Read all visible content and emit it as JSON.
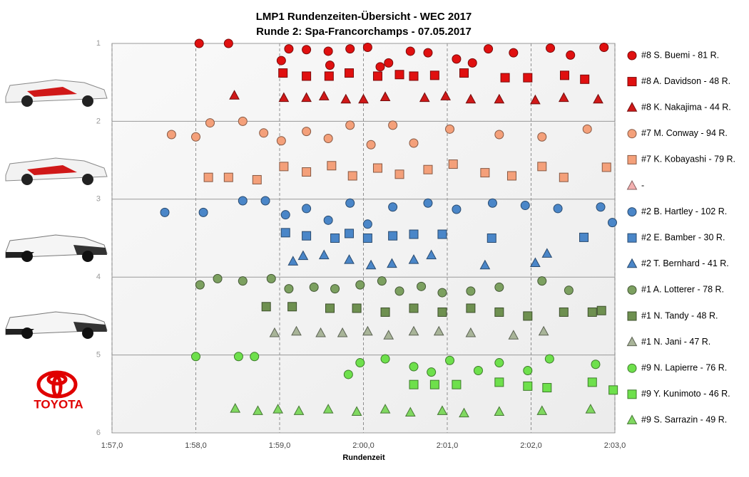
{
  "chart_data": {
    "type": "scatter",
    "title": "LMP1  Rundenzeiten-Übersicht  - WEC 2017",
    "subtitle": "Runde  2: Spa-Francorchamps  - 07.05.2017",
    "x_label": "Rundenzeit",
    "brand": "TOYOTA",
    "xlim": [
      117,
      123
    ],
    "xticks": [
      {
        "value": 117,
        "label": "1:57,0"
      },
      {
        "value": 118,
        "label": "1:58,0"
      },
      {
        "value": 119,
        "label": "1:59,0"
      },
      {
        "value": 120,
        "label": "2:00,0"
      },
      {
        "value": 121,
        "label": "2:01,0"
      },
      {
        "value": 122,
        "label": "2:02,0"
      },
      {
        "value": 123,
        "label": "2:03,0"
      }
    ],
    "ylim": [
      1,
      6
    ],
    "y_reversed": true,
    "yticks": [
      1,
      2,
      3,
      4,
      5,
      6
    ],
    "grid": true,
    "legend": "right",
    "series": [
      {
        "name": "#8 S. Buemi - 81 R.",
        "color": "#e01010",
        "marker": "circle",
        "x": [
          118.04,
          118.39,
          119.11,
          119.02,
          119.32,
          119.58,
          119.84,
          120.05,
          120.3,
          120.56,
          120.77,
          121.11,
          121.49,
          121.79,
          122.23,
          122.47,
          122.87,
          119.6,
          120.2,
          121.3
        ],
        "y": [
          1.0,
          1.0,
          1.07,
          1.22,
          1.08,
          1.1,
          1.07,
          1.05,
          1.25,
          1.1,
          1.12,
          1.2,
          1.07,
          1.12,
          1.06,
          1.15,
          1.05,
          1.28,
          1.3,
          1.25
        ]
      },
      {
        "name": "#8 A. Davidson - 48 R.",
        "color": "#e01010",
        "marker": "square",
        "x": [
          119.04,
          119.32,
          119.59,
          119.83,
          120.17,
          120.43,
          120.6,
          120.85,
          121.2,
          121.69,
          121.96,
          122.4,
          122.64
        ],
        "y": [
          1.38,
          1.42,
          1.42,
          1.38,
          1.42,
          1.4,
          1.42,
          1.41,
          1.38,
          1.44,
          1.44,
          1.41,
          1.46
        ]
      },
      {
        "name": "#8 K. Nakajima - 44 R.",
        "color": "#d01818",
        "marker": "triangle",
        "x": [
          118.46,
          119.05,
          119.32,
          119.53,
          119.79,
          120.0,
          120.26,
          120.73,
          120.98,
          121.28,
          121.62,
          122.05,
          122.39,
          122.8
        ],
        "y": [
          1.67,
          1.7,
          1.7,
          1.68,
          1.72,
          1.72,
          1.69,
          1.7,
          1.68,
          1.72,
          1.72,
          1.73,
          1.7,
          1.72
        ]
      },
      {
        "name": "#7 M. Conway - 94 R.",
        "color": "#f4a07a",
        "marker": "circle",
        "x": [
          117.71,
          118.0,
          118.17,
          118.56,
          118.81,
          119.02,
          119.32,
          119.58,
          119.84,
          120.09,
          120.35,
          120.6,
          121.03,
          121.62,
          122.13,
          122.67
        ],
        "y": [
          2.17,
          2.2,
          2.02,
          2.0,
          2.15,
          2.25,
          2.13,
          2.22,
          2.05,
          2.3,
          2.05,
          2.28,
          2.1,
          2.17,
          2.2,
          2.1
        ]
      },
      {
        "name": "#7 K. Kobayashi - 79 R.",
        "color": "#f4a07a",
        "marker": "square",
        "x": [
          118.15,
          118.39,
          118.73,
          119.05,
          119.32,
          119.62,
          119.87,
          120.17,
          120.43,
          120.77,
          121.07,
          121.45,
          121.77,
          122.13,
          122.39,
          122.9
        ],
        "y": [
          2.72,
          2.72,
          2.75,
          2.58,
          2.65,
          2.57,
          2.7,
          2.6,
          2.68,
          2.62,
          2.55,
          2.66,
          2.7,
          2.58,
          2.72,
          2.59
        ]
      },
      {
        "name": "-",
        "color": "#f4b0b0",
        "marker": "triangle",
        "x": [],
        "y": []
      },
      {
        "name": "#2 B. Hartley - 102 R.",
        "color": "#4a86c8",
        "marker": "circle",
        "x": [
          117.63,
          118.09,
          118.56,
          118.83,
          119.07,
          119.32,
          119.58,
          119.84,
          120.05,
          120.35,
          120.77,
          121.11,
          121.54,
          121.93,
          122.32,
          122.83,
          122.97
        ],
        "y": [
          3.17,
          3.17,
          3.02,
          3.02,
          3.2,
          3.12,
          3.27,
          3.05,
          3.32,
          3.1,
          3.05,
          3.13,
          3.05,
          3.08,
          3.12,
          3.1,
          3.3
        ]
      },
      {
        "name": "#2 E. Bamber - 30 R.",
        "color": "#4a86c8",
        "marker": "square",
        "x": [
          119.07,
          119.32,
          119.66,
          119.83,
          120.05,
          120.35,
          120.6,
          120.94,
          121.53,
          122.63
        ],
        "y": [
          3.43,
          3.47,
          3.5,
          3.44,
          3.5,
          3.47,
          3.45,
          3.45,
          3.5,
          3.49
        ]
      },
      {
        "name": "#2 T. Bernhard - 41 R.",
        "color": "#4a86c8",
        "marker": "triangle",
        "x": [
          119.16,
          119.28,
          119.53,
          119.83,
          120.09,
          120.34,
          120.6,
          120.81,
          121.45,
          122.05,
          122.19
        ],
        "y": [
          3.8,
          3.73,
          3.72,
          3.78,
          3.85,
          3.83,
          3.78,
          3.72,
          3.85,
          3.82,
          3.7
        ]
      },
      {
        "name": "#1 A. Lotterer - 78 R.",
        "color": "#7ca060",
        "marker": "circle",
        "x": [
          118.05,
          118.26,
          118.56,
          118.9,
          119.11,
          119.41,
          119.66,
          119.96,
          120.22,
          120.43,
          120.69,
          120.94,
          121.28,
          121.62,
          122.13,
          122.45
        ],
        "y": [
          4.1,
          4.02,
          4.05,
          4.02,
          4.15,
          4.13,
          4.15,
          4.1,
          4.05,
          4.18,
          4.12,
          4.2,
          4.18,
          4.13,
          4.05,
          4.17
        ]
      },
      {
        "name": "#1 N. Tandy - 48 R.",
        "color": "#6e9050",
        "marker": "square",
        "x": [
          118.84,
          119.15,
          119.6,
          119.92,
          120.26,
          120.6,
          120.94,
          121.28,
          121.62,
          121.96,
          122.39,
          122.73,
          122.84
        ],
        "y": [
          4.38,
          4.38,
          4.4,
          4.4,
          4.45,
          4.4,
          4.45,
          4.4,
          4.45,
          4.5,
          4.45,
          4.45,
          4.43
        ]
      },
      {
        "name": "#1 N. Jani - 47 R.",
        "color": "#a8b498",
        "marker": "triangle",
        "x": [
          118.94,
          119.2,
          119.49,
          119.75,
          120.05,
          120.3,
          120.6,
          120.9,
          121.28,
          121.79,
          122.15
        ],
        "y": [
          4.72,
          4.7,
          4.72,
          4.72,
          4.7,
          4.75,
          4.7,
          4.7,
          4.72,
          4.75,
          4.7
        ]
      },
      {
        "name": "#9 N. Lapierre - 76 R.",
        "color": "#6ee04c",
        "marker": "circle",
        "x": [
          118.0,
          118.51,
          118.7,
          119.82,
          119.96,
          120.26,
          120.6,
          120.81,
          121.03,
          121.37,
          121.62,
          121.96,
          122.22,
          122.77
        ],
        "y": [
          5.02,
          5.02,
          5.02,
          5.25,
          5.1,
          5.05,
          5.15,
          5.22,
          5.07,
          5.2,
          5.1,
          5.2,
          5.05,
          5.12
        ]
      },
      {
        "name": "#9 Y. Kunimoto - 46 R.",
        "color": "#6ee04c",
        "marker": "square",
        "x": [
          120.6,
          120.85,
          121.11,
          121.62,
          121.96,
          122.19,
          122.73,
          122.98
        ],
        "y": [
          5.38,
          5.38,
          5.38,
          5.35,
          5.4,
          5.42,
          5.35,
          5.45
        ]
      },
      {
        "name": "#9 S. Sarrazin - 49 R.",
        "color": "#80d860",
        "marker": "triangle",
        "x": [
          118.47,
          118.74,
          118.98,
          119.23,
          119.58,
          119.92,
          120.26,
          120.56,
          120.94,
          121.2,
          121.62,
          122.13,
          122.71
        ],
        "y": [
          5.69,
          5.72,
          5.7,
          5.72,
          5.7,
          5.73,
          5.7,
          5.74,
          5.72,
          5.75,
          5.73,
          5.72,
          5.7
        ]
      }
    ]
  }
}
